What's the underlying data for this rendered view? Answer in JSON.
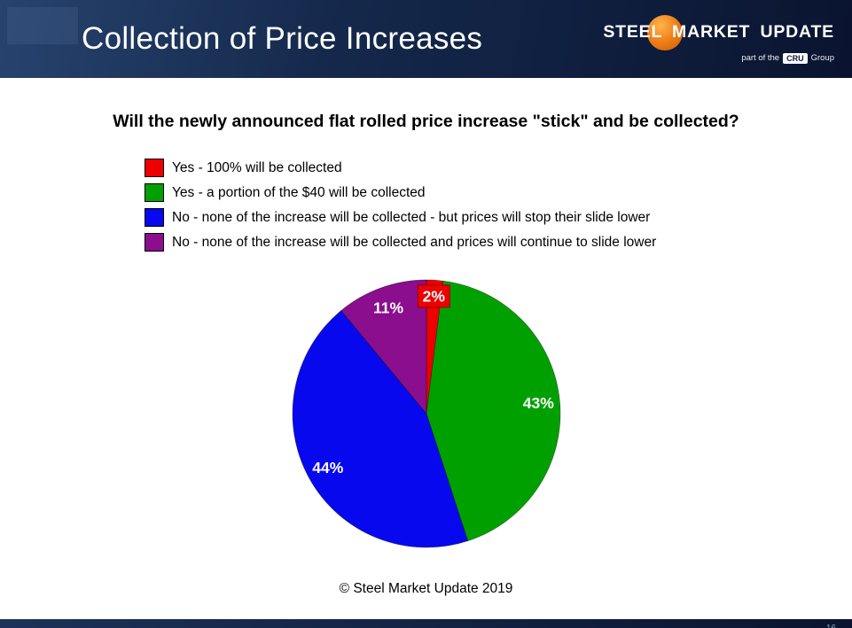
{
  "header": {
    "title": "Collection of Price Increases",
    "logo": {
      "steel": "STEEL",
      "market": "MARKET",
      "update": "UPDATE",
      "tagline_prefix": "part of the",
      "cru_badge": "CRU",
      "tagline_suffix": "Group"
    }
  },
  "chart_data": {
    "type": "pie",
    "title": "Will the newly announced flat rolled price increase \"stick\" and be collected?",
    "direction": "clockwise",
    "start_angle_deg": 0,
    "legend_position": "top-left",
    "slices": [
      {
        "label": "Yes - 100% will be collected",
        "value": 2,
        "data_label": "2%",
        "color": "#ED0000",
        "label_r": 0.88,
        "badge": true
      },
      {
        "label": "Yes - a portion of the $40 will be collected",
        "value": 43,
        "data_label": "43%",
        "color": "#00A000",
        "label_r": 0.84,
        "badge": false
      },
      {
        "label": "No - none of the increase will be collected - but prices will stop their slide lower",
        "value": 44,
        "data_label": "44%",
        "color": "#0808EE",
        "label_r": 0.84,
        "badge": false
      },
      {
        "label": "No - none of the increase will be collected and prices will continue to slide lower",
        "value": 11,
        "data_label": "11%",
        "color": "#8A0E8E",
        "label_r": 0.84,
        "badge": false
      }
    ]
  },
  "footer": {
    "copyright": "© Steel Market Update 2019",
    "page_number": "16"
  }
}
